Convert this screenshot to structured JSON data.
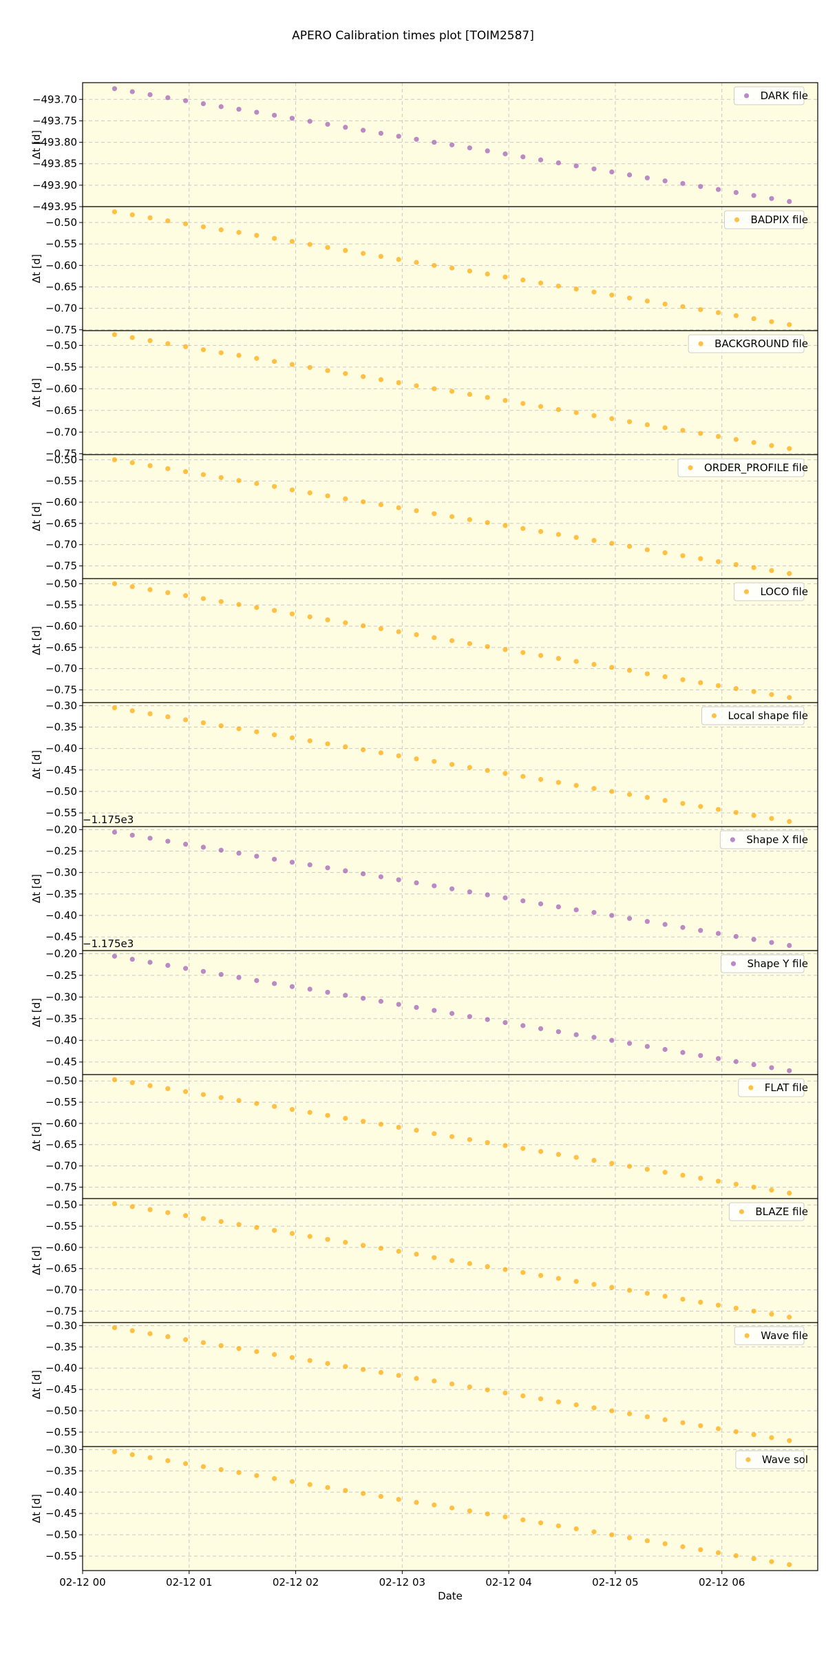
{
  "chart_data": {
    "type": "scatter",
    "title": "APERO Calibration times plot [TOIM2587]",
    "xlabel": "Date",
    "grid": true,
    "legend": "upper right",
    "xlim": [
      "02-12 00:00",
      "02-12 06:54"
    ],
    "xticks": [
      {
        "value": "02-12 00:00",
        "label": "02-12 00"
      },
      {
        "value": "02-12 01:00",
        "label": "02-12 01"
      },
      {
        "value": "02-12 02:00",
        "label": "02-12 02"
      },
      {
        "value": "02-12 03:00",
        "label": "02-12 03"
      },
      {
        "value": "02-12 04:00",
        "label": "02-12 04"
      },
      {
        "value": "02-12 05:00",
        "label": "02-12 05"
      },
      {
        "value": "02-12 06:00",
        "label": "02-12 06"
      }
    ],
    "x": [
      "02-12 00:18",
      "02-12 00:28",
      "02-12 00:38",
      "02-12 00:48",
      "02-12 00:58",
      "02-12 01:08",
      "02-12 01:18",
      "02-12 01:28",
      "02-12 01:38",
      "02-12 01:48",
      "02-12 01:58",
      "02-12 02:08",
      "02-12 02:18",
      "02-12 02:28",
      "02-12 02:38",
      "02-12 02:48",
      "02-12 02:58",
      "02-12 03:08",
      "02-12 03:18",
      "02-12 03:28",
      "02-12 03:38",
      "02-12 03:48",
      "02-12 03:58",
      "02-12 04:08",
      "02-12 04:18",
      "02-12 04:28",
      "02-12 04:38",
      "02-12 04:48",
      "02-12 04:58",
      "02-12 05:08",
      "02-12 05:18",
      "02-12 05:28",
      "02-12 05:38",
      "02-12 05:48",
      "02-12 05:58",
      "02-12 06:08",
      "02-12 06:18",
      "02-12 06:28",
      "02-12 06:38"
    ],
    "panels": [
      {
        "name": "DARK file",
        "ylabel": "Δt [d]",
        "color": "#9b59b6",
        "ylim": [
          -493.95,
          -493.661
        ],
        "yticks": [
          {
            "value": -493.7,
            "label": "−493.70"
          },
          {
            "value": -493.75,
            "label": "−493.75"
          },
          {
            "value": -493.8,
            "label": "−493.80"
          },
          {
            "value": -493.85,
            "label": "−493.85"
          },
          {
            "value": -493.9,
            "label": "−493.90"
          },
          {
            "value": -493.95,
            "label": "−493.95"
          }
        ],
        "values": [
          -493.675,
          -493.682,
          -493.689,
          -493.696,
          -493.703,
          -493.71,
          -493.717,
          -493.723,
          -493.73,
          -493.737,
          -493.744,
          -493.751,
          -493.758,
          -493.765,
          -493.772,
          -493.779,
          -493.786,
          -493.793,
          -493.8,
          -493.806,
          -493.813,
          -493.82,
          -493.827,
          -493.834,
          -493.841,
          -493.848,
          -493.855,
          -493.862,
          -493.869,
          -493.876,
          -493.883,
          -493.89,
          -493.896,
          -493.903,
          -493.91,
          -493.917,
          -493.924,
          -493.931,
          -493.938
        ]
      },
      {
        "name": "BADPIX file",
        "ylabel": "Δt [d]",
        "color": "#ffa500",
        "ylim": [
          -0.752,
          -0.463
        ],
        "yticks": [
          {
            "value": -0.5,
            "label": "−0.50"
          },
          {
            "value": -0.55,
            "label": "−0.55"
          },
          {
            "value": -0.6,
            "label": "−0.60"
          },
          {
            "value": -0.65,
            "label": "−0.65"
          },
          {
            "value": -0.7,
            "label": "−0.70"
          },
          {
            "value": -0.75,
            "label": "−0.75"
          }
        ],
        "values": [
          -0.475,
          -0.482,
          -0.489,
          -0.496,
          -0.503,
          -0.51,
          -0.517,
          -0.523,
          -0.53,
          -0.537,
          -0.544,
          -0.551,
          -0.558,
          -0.565,
          -0.572,
          -0.579,
          -0.586,
          -0.593,
          -0.6,
          -0.606,
          -0.613,
          -0.62,
          -0.627,
          -0.634,
          -0.641,
          -0.648,
          -0.655,
          -0.662,
          -0.669,
          -0.676,
          -0.683,
          -0.69,
          -0.696,
          -0.703,
          -0.71,
          -0.717,
          -0.724,
          -0.731,
          -0.738
        ]
      },
      {
        "name": "BACKGROUND file",
        "ylabel": "Δt [d]",
        "color": "#ffa500",
        "ylim": [
          -0.752,
          -0.466
        ],
        "yticks": [
          {
            "value": -0.5,
            "label": "−0.50"
          },
          {
            "value": -0.55,
            "label": "−0.55"
          },
          {
            "value": -0.6,
            "label": "−0.60"
          },
          {
            "value": -0.65,
            "label": "−0.65"
          },
          {
            "value": -0.7,
            "label": "−0.70"
          },
          {
            "value": -0.75,
            "label": "−0.75"
          }
        ],
        "values": [
          -0.475,
          -0.482,
          -0.489,
          -0.496,
          -0.503,
          -0.51,
          -0.517,
          -0.523,
          -0.53,
          -0.537,
          -0.544,
          -0.551,
          -0.558,
          -0.565,
          -0.572,
          -0.579,
          -0.586,
          -0.593,
          -0.6,
          -0.606,
          -0.613,
          -0.62,
          -0.627,
          -0.634,
          -0.641,
          -0.648,
          -0.655,
          -0.662,
          -0.669,
          -0.676,
          -0.683,
          -0.69,
          -0.696,
          -0.703,
          -0.71,
          -0.717,
          -0.724,
          -0.731,
          -0.738
        ]
      },
      {
        "name": "ORDER_PROFILE file",
        "ylabel": "Δt [d]",
        "color": "#ffa500",
        "ylim": [
          -0.78,
          -0.488
        ],
        "yticks": [
          {
            "value": -0.5,
            "label": "−0.50"
          },
          {
            "value": -0.55,
            "label": "−0.55"
          },
          {
            "value": -0.6,
            "label": "−0.60"
          },
          {
            "value": -0.65,
            "label": "−0.65"
          },
          {
            "value": -0.7,
            "label": "−0.70"
          },
          {
            "value": -0.75,
            "label": "−0.75"
          }
        ],
        "values": [
          -0.5,
          -0.507,
          -0.514,
          -0.521,
          -0.528,
          -0.535,
          -0.542,
          -0.549,
          -0.556,
          -0.563,
          -0.571,
          -0.578,
          -0.585,
          -0.592,
          -0.599,
          -0.606,
          -0.613,
          -0.62,
          -0.627,
          -0.634,
          -0.641,
          -0.648,
          -0.655,
          -0.662,
          -0.669,
          -0.676,
          -0.683,
          -0.69,
          -0.697,
          -0.704,
          -0.712,
          -0.719,
          -0.726,
          -0.733,
          -0.74,
          -0.747,
          -0.754,
          -0.761,
          -0.768
        ]
      },
      {
        "name": "LOCO file",
        "ylabel": "Δt [d]",
        "color": "#ffa500",
        "ylim": [
          -0.78,
          -0.488
        ],
        "yticks": [
          {
            "value": -0.5,
            "label": "−0.50"
          },
          {
            "value": -0.55,
            "label": "−0.55"
          },
          {
            "value": -0.6,
            "label": "−0.60"
          },
          {
            "value": -0.65,
            "label": "−0.65"
          },
          {
            "value": -0.7,
            "label": "−0.70"
          },
          {
            "value": -0.75,
            "label": "−0.75"
          }
        ],
        "values": [
          -0.5,
          -0.507,
          -0.514,
          -0.521,
          -0.528,
          -0.535,
          -0.542,
          -0.549,
          -0.556,
          -0.563,
          -0.571,
          -0.578,
          -0.585,
          -0.592,
          -0.599,
          -0.606,
          -0.613,
          -0.62,
          -0.627,
          -0.634,
          -0.641,
          -0.648,
          -0.655,
          -0.662,
          -0.669,
          -0.676,
          -0.683,
          -0.69,
          -0.697,
          -0.704,
          -0.712,
          -0.719,
          -0.726,
          -0.733,
          -0.74,
          -0.747,
          -0.754,
          -0.761,
          -0.768
        ]
      },
      {
        "name": "Local shape file",
        "ylabel": "Δt [d]",
        "color": "#ffa500",
        "ylim": [
          -0.582,
          -0.293
        ],
        "yticks": [
          {
            "value": -0.3,
            "label": "−0.30"
          },
          {
            "value": -0.35,
            "label": "−0.35"
          },
          {
            "value": -0.4,
            "label": "−0.40"
          },
          {
            "value": -0.45,
            "label": "−0.45"
          },
          {
            "value": -0.5,
            "label": "−0.50"
          },
          {
            "value": -0.55,
            "label": "−0.55"
          }
        ],
        "values": [
          -0.305,
          -0.312,
          -0.319,
          -0.326,
          -0.333,
          -0.34,
          -0.347,
          -0.354,
          -0.361,
          -0.368,
          -0.375,
          -0.382,
          -0.389,
          -0.396,
          -0.403,
          -0.41,
          -0.417,
          -0.424,
          -0.43,
          -0.437,
          -0.444,
          -0.451,
          -0.458,
          -0.465,
          -0.472,
          -0.479,
          -0.486,
          -0.493,
          -0.5,
          -0.507,
          -0.514,
          -0.521,
          -0.528,
          -0.535,
          -0.542,
          -0.549,
          -0.556,
          -0.563,
          -0.57
        ]
      },
      {
        "name": "Shape X file",
        "ylabel": "Δt [d]",
        "color": "#9b59b6",
        "offset_text": "−1.175e3",
        "ylim": [
          -0.482,
          -0.193
        ],
        "yticks": [
          {
            "value": -0.2,
            "label": "−0.20"
          },
          {
            "value": -0.25,
            "label": "−0.25"
          },
          {
            "value": -0.3,
            "label": "−0.30"
          },
          {
            "value": -0.35,
            "label": "−0.35"
          },
          {
            "value": -0.4,
            "label": "−0.40"
          },
          {
            "value": -0.45,
            "label": "−0.45"
          }
        ],
        "values": [
          -0.206,
          -0.213,
          -0.22,
          -0.227,
          -0.234,
          -0.241,
          -0.248,
          -0.255,
          -0.262,
          -0.269,
          -0.276,
          -0.282,
          -0.289,
          -0.296,
          -0.303,
          -0.31,
          -0.317,
          -0.324,
          -0.331,
          -0.338,
          -0.345,
          -0.352,
          -0.359,
          -0.366,
          -0.373,
          -0.38,
          -0.387,
          -0.393,
          -0.4,
          -0.407,
          -0.414,
          -0.421,
          -0.428,
          -0.435,
          -0.442,
          -0.449,
          -0.456,
          -0.463,
          -0.47
        ]
      },
      {
        "name": "Shape Y file",
        "ylabel": "Δt [d]",
        "color": "#9b59b6",
        "offset_text": "−1.175e3",
        "ylim": [
          -0.479,
          -0.193
        ],
        "yticks": [
          {
            "value": -0.2,
            "label": "−0.20"
          },
          {
            "value": -0.25,
            "label": "−0.25"
          },
          {
            "value": -0.3,
            "label": "−0.30"
          },
          {
            "value": -0.35,
            "label": "−0.35"
          },
          {
            "value": -0.4,
            "label": "−0.40"
          },
          {
            "value": -0.45,
            "label": "−0.45"
          }
        ],
        "values": [
          -0.206,
          -0.213,
          -0.22,
          -0.227,
          -0.234,
          -0.241,
          -0.248,
          -0.255,
          -0.262,
          -0.269,
          -0.276,
          -0.282,
          -0.289,
          -0.296,
          -0.303,
          -0.31,
          -0.317,
          -0.324,
          -0.331,
          -0.338,
          -0.345,
          -0.352,
          -0.359,
          -0.366,
          -0.373,
          -0.38,
          -0.387,
          -0.393,
          -0.4,
          -0.407,
          -0.414,
          -0.421,
          -0.428,
          -0.435,
          -0.442,
          -0.449,
          -0.456,
          -0.463,
          -0.47
        ]
      },
      {
        "name": "FLAT file",
        "ylabel": "Δt [d]",
        "color": "#ffa500",
        "ylim": [
          -0.777,
          -0.485
        ],
        "yticks": [
          {
            "value": -0.5,
            "label": "−0.50"
          },
          {
            "value": -0.55,
            "label": "−0.55"
          },
          {
            "value": -0.6,
            "label": "−0.60"
          },
          {
            "value": -0.65,
            "label": "−0.65"
          },
          {
            "value": -0.7,
            "label": "−0.70"
          },
          {
            "value": -0.75,
            "label": "−0.75"
          }
        ],
        "values": [
          -0.497,
          -0.504,
          -0.511,
          -0.518,
          -0.525,
          -0.532,
          -0.539,
          -0.546,
          -0.553,
          -0.56,
          -0.567,
          -0.574,
          -0.581,
          -0.588,
          -0.595,
          -0.602,
          -0.609,
          -0.616,
          -0.624,
          -0.631,
          -0.638,
          -0.645,
          -0.652,
          -0.659,
          -0.666,
          -0.673,
          -0.68,
          -0.687,
          -0.694,
          -0.701,
          -0.708,
          -0.715,
          -0.722,
          -0.729,
          -0.736,
          -0.743,
          -0.75,
          -0.757,
          -0.764
        ]
      },
      {
        "name": "BLAZE file",
        "ylabel": "Δt [d]",
        "color": "#ffa500",
        "ylim": [
          -0.777,
          -0.485
        ],
        "yticks": [
          {
            "value": -0.5,
            "label": "−0.50"
          },
          {
            "value": -0.55,
            "label": "−0.55"
          },
          {
            "value": -0.6,
            "label": "−0.60"
          },
          {
            "value": -0.65,
            "label": "−0.65"
          },
          {
            "value": -0.7,
            "label": "−0.70"
          },
          {
            "value": -0.75,
            "label": "−0.75"
          }
        ],
        "values": [
          -0.497,
          -0.504,
          -0.511,
          -0.518,
          -0.525,
          -0.532,
          -0.539,
          -0.546,
          -0.553,
          -0.56,
          -0.567,
          -0.574,
          -0.581,
          -0.588,
          -0.595,
          -0.602,
          -0.609,
          -0.616,
          -0.624,
          -0.631,
          -0.638,
          -0.645,
          -0.652,
          -0.659,
          -0.666,
          -0.673,
          -0.68,
          -0.687,
          -0.694,
          -0.701,
          -0.708,
          -0.715,
          -0.722,
          -0.729,
          -0.736,
          -0.743,
          -0.75,
          -0.757,
          -0.764
        ]
      },
      {
        "name": "Wave file",
        "ylabel": "Δt [d]",
        "color": "#ffa500",
        "ylim": [
          -0.584,
          -0.293
        ],
        "yticks": [
          {
            "value": -0.3,
            "label": "−0.30"
          },
          {
            "value": -0.35,
            "label": "−0.35"
          },
          {
            "value": -0.4,
            "label": "−0.40"
          },
          {
            "value": -0.45,
            "label": "−0.45"
          },
          {
            "value": -0.5,
            "label": "−0.50"
          },
          {
            "value": -0.55,
            "label": "−0.55"
          }
        ],
        "values": [
          -0.305,
          -0.312,
          -0.319,
          -0.326,
          -0.333,
          -0.34,
          -0.347,
          -0.354,
          -0.361,
          -0.368,
          -0.375,
          -0.382,
          -0.389,
          -0.396,
          -0.403,
          -0.41,
          -0.417,
          -0.424,
          -0.43,
          -0.437,
          -0.444,
          -0.451,
          -0.458,
          -0.465,
          -0.472,
          -0.479,
          -0.486,
          -0.493,
          -0.5,
          -0.507,
          -0.514,
          -0.521,
          -0.528,
          -0.535,
          -0.542,
          -0.549,
          -0.556,
          -0.563,
          -0.57
        ]
      },
      {
        "name": "Wave sol",
        "ylabel": "Δt [d]",
        "color": "#ffa500",
        "ylim": [
          -0.584,
          -0.293
        ],
        "yticks": [
          {
            "value": -0.3,
            "label": "−0.30"
          },
          {
            "value": -0.35,
            "label": "−0.35"
          },
          {
            "value": -0.4,
            "label": "−0.40"
          },
          {
            "value": -0.45,
            "label": "−0.45"
          },
          {
            "value": -0.5,
            "label": "−0.50"
          },
          {
            "value": -0.55,
            "label": "−0.55"
          }
        ],
        "values": [
          -0.305,
          -0.312,
          -0.319,
          -0.326,
          -0.333,
          -0.34,
          -0.347,
          -0.354,
          -0.361,
          -0.368,
          -0.375,
          -0.382,
          -0.389,
          -0.396,
          -0.403,
          -0.41,
          -0.417,
          -0.424,
          -0.43,
          -0.437,
          -0.444,
          -0.451,
          -0.458,
          -0.465,
          -0.472,
          -0.479,
          -0.486,
          -0.493,
          -0.5,
          -0.507,
          -0.514,
          -0.521,
          -0.528,
          -0.535,
          -0.542,
          -0.549,
          -0.556,
          -0.563,
          -0.57
        ]
      }
    ]
  }
}
